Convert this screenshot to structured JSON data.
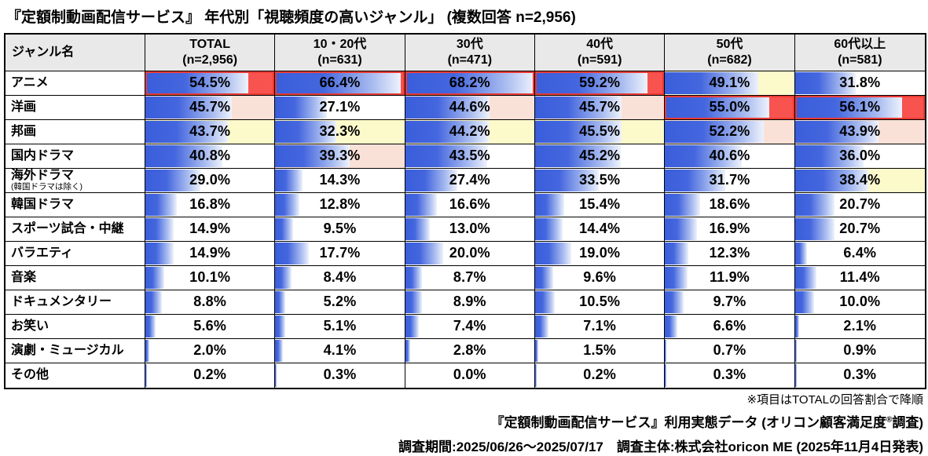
{
  "title": "『定額制動画配信サービス』 年代別「視聴頻度の高いジャンル」 (複数回答 n=2,956)",
  "table": {
    "genre_header": "ジャンル名",
    "columns": [
      {
        "label": "TOTAL",
        "n": "(n=2,956)"
      },
      {
        "label": "10・20代",
        "n": "(n=631)"
      },
      {
        "label": "30代",
        "n": "(n=471)"
      },
      {
        "label": "40代",
        "n": "(n=591)"
      },
      {
        "label": "50代",
        "n": "(n=682)"
      },
      {
        "label": "60代以上",
        "n": "(n=581)"
      }
    ],
    "rows": [
      {
        "genre": "アニメ",
        "note": "",
        "values": [
          54.5,
          66.4,
          68.2,
          59.2,
          49.1,
          31.8
        ],
        "highlights": [
          "red",
          "red",
          "red",
          "red",
          "yellow",
          ""
        ]
      },
      {
        "genre": "洋画",
        "note": "",
        "values": [
          45.7,
          27.1,
          44.6,
          45.7,
          55.0,
          56.1
        ],
        "highlights": [
          "peach",
          "",
          "peach",
          "peach",
          "red",
          "red"
        ]
      },
      {
        "genre": "邦画",
        "note": "",
        "values": [
          43.7,
          32.3,
          44.2,
          45.5,
          52.2,
          43.9
        ],
        "highlights": [
          "yellow",
          "yellow",
          "yellow",
          "yellow",
          "peach",
          "peach"
        ]
      },
      {
        "genre": "国内ドラマ",
        "note": "",
        "values": [
          40.8,
          39.3,
          43.5,
          45.2,
          40.6,
          36.0
        ],
        "highlights": [
          "",
          "peach",
          "",
          "",
          "",
          ""
        ]
      },
      {
        "genre": "海外ドラマ",
        "note": "(韓国ドラマは除く)",
        "values": [
          29.0,
          14.3,
          27.4,
          33.5,
          31.7,
          38.4
        ],
        "highlights": [
          "",
          "",
          "",
          "",
          "",
          "yellow"
        ]
      },
      {
        "genre": "韓国ドラマ",
        "note": "",
        "values": [
          16.8,
          12.8,
          16.6,
          15.4,
          18.6,
          20.7
        ],
        "highlights": [
          "",
          "",
          "",
          "",
          "",
          ""
        ]
      },
      {
        "genre": "スポーツ試合・中継",
        "note": "",
        "values": [
          14.9,
          9.5,
          13.0,
          14.4,
          16.9,
          20.7
        ],
        "highlights": [
          "",
          "",
          "",
          "",
          "",
          ""
        ]
      },
      {
        "genre": "バラエティ",
        "note": "",
        "values": [
          14.9,
          17.7,
          20.0,
          19.0,
          12.3,
          6.4
        ],
        "highlights": [
          "",
          "",
          "",
          "",
          "",
          ""
        ]
      },
      {
        "genre": "音楽",
        "note": "",
        "values": [
          10.1,
          8.4,
          8.7,
          9.6,
          11.9,
          11.4
        ],
        "highlights": [
          "",
          "",
          "",
          "",
          "",
          ""
        ]
      },
      {
        "genre": "ドキュメンタリー",
        "note": "",
        "values": [
          8.8,
          5.2,
          8.9,
          10.5,
          9.7,
          10.0
        ],
        "highlights": [
          "",
          "",
          "",
          "",
          "",
          ""
        ]
      },
      {
        "genre": "お笑い",
        "note": "",
        "values": [
          5.6,
          5.1,
          7.4,
          7.1,
          6.6,
          2.1
        ],
        "highlights": [
          "",
          "",
          "",
          "",
          "",
          ""
        ]
      },
      {
        "genre": "演劇・ミュージカル",
        "note": "",
        "values": [
          2.0,
          4.1,
          2.8,
          1.5,
          0.7,
          0.9
        ],
        "highlights": [
          "",
          "",
          "",
          "",
          "",
          ""
        ]
      },
      {
        "genre": "その他",
        "note": "",
        "values": [
          0.2,
          0.3,
          0.0,
          0.2,
          0.3,
          0.3
        ],
        "highlights": [
          "",
          "",
          "",
          "",
          "",
          ""
        ]
      }
    ]
  },
  "footer": {
    "note": "※項目はTOTALの回答割合で降順",
    "source_prefix": "『定額制動画配信サービス』利用実態データ (オリコン顧客満足度",
    "source_reg": "®",
    "source_suffix": "調査)",
    "period_line": "調査期間:2025/06/26～2025/07/17　調査主体:株式会社oricon ME (2025年11月4日発表)"
  },
  "colors": {
    "bar_blue": "#3a5edb",
    "rank1_fill": "#f8534f",
    "rank1_border": "#ea3a34",
    "rank2_fill": "#fae1d7",
    "rank3_fill": "#fcf9cb",
    "header_bg": "#e9e9e9"
  },
  "chart_data": {
    "type": "bar",
    "orientation": "horizontal",
    "unit": "%",
    "title": "『定額制動画配信サービス』 年代別「視聴頻度の高いジャンル」 (複数回答 n=2,956)",
    "categories": [
      "アニメ",
      "洋画",
      "邦画",
      "国内ドラマ",
      "海外ドラマ(韓国ドラマは除く)",
      "韓国ドラマ",
      "スポーツ試合・中継",
      "バラエティ",
      "音楽",
      "ドキュメンタリー",
      "お笑い",
      "演劇・ミュージカル",
      "その他"
    ],
    "series": [
      {
        "name": "TOTAL (n=2,956)",
        "values": [
          54.5,
          45.7,
          43.7,
          40.8,
          29.0,
          16.8,
          14.9,
          14.9,
          10.1,
          8.8,
          5.6,
          2.0,
          0.2
        ]
      },
      {
        "name": "10・20代 (n=631)",
        "values": [
          66.4,
          27.1,
          32.3,
          39.3,
          14.3,
          12.8,
          9.5,
          17.7,
          8.4,
          5.2,
          5.1,
          4.1,
          0.3
        ]
      },
      {
        "name": "30代 (n=471)",
        "values": [
          68.2,
          44.6,
          44.2,
          43.5,
          27.4,
          16.6,
          13.0,
          20.0,
          8.7,
          8.9,
          7.4,
          2.8,
          0.0
        ]
      },
      {
        "name": "40代 (n=591)",
        "values": [
          59.2,
          45.7,
          45.5,
          45.2,
          33.5,
          15.4,
          14.4,
          19.0,
          9.6,
          10.5,
          7.1,
          1.5,
          0.2
        ]
      },
      {
        "name": "50代 (n=682)",
        "values": [
          49.1,
          55.0,
          52.2,
          40.6,
          31.7,
          18.6,
          16.9,
          12.3,
          11.9,
          9.7,
          6.6,
          0.7,
          0.3
        ]
      },
      {
        "name": "60代以上 (n=581)",
        "values": [
          31.8,
          56.1,
          43.9,
          36.0,
          38.4,
          20.7,
          20.7,
          6.4,
          11.4,
          10.0,
          2.1,
          0.9,
          0.3
        ]
      }
    ],
    "bar_scale_max": 68.2,
    "highlight_rule": "per column: 1st place = red fill + red border, 2nd = peach fill, 3rd = yellow fill",
    "sort_note": "※項目はTOTALの回答割合で降順"
  }
}
